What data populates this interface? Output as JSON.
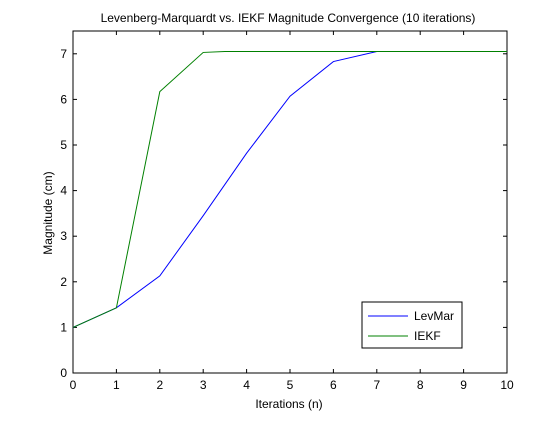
{
  "chart_data": {
    "type": "line",
    "title": "Levenberg-Marquardt vs. IEKF Magnitude Convergence (10 iterations)",
    "xlabel": "Iterations (n)",
    "ylabel": "Magnitude (cm)",
    "xlim": [
      0,
      10
    ],
    "ylim": [
      0,
      7.5
    ],
    "xticks": [
      "0",
      "1",
      "2",
      "3",
      "4",
      "5",
      "6",
      "7",
      "8",
      "9",
      "10"
    ],
    "yticks": [
      "0",
      "1",
      "2",
      "3",
      "4",
      "5",
      "6",
      "7"
    ],
    "grid": false,
    "legend_position": "bottom-right",
    "series": [
      {
        "name": "LevMar",
        "color": "#0000ff",
        "x": [
          0,
          1,
          2,
          3,
          4,
          5,
          6,
          7,
          7.5
        ],
        "y": [
          1.0,
          1.43,
          2.13,
          3.45,
          4.82,
          6.07,
          6.83,
          7.05,
          7.05
        ]
      },
      {
        "name": "IEKF",
        "color": "#008000",
        "x": [
          0,
          1,
          2,
          3,
          3.5,
          10
        ],
        "y": [
          1.0,
          1.43,
          6.17,
          7.03,
          7.05,
          7.05
        ]
      }
    ]
  }
}
